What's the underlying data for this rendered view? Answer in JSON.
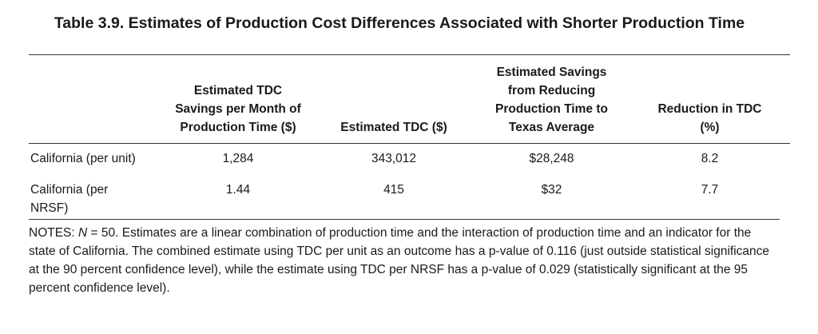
{
  "title": "Table 3.9. Estimates of Production Cost Differences Associated with Shorter Production Time",
  "columns": [
    {
      "lines": []
    },
    {
      "lines": [
        "Estimated TDC",
        "Savings per Month of",
        "Production Time ($)"
      ]
    },
    {
      "lines": [
        "Estimated TDC ($)"
      ]
    },
    {
      "lines": [
        "Estimated Savings",
        "from Reducing",
        "Production Time to",
        "Texas Average"
      ]
    },
    {
      "lines": [
        "Reduction in TDC",
        "(%)"
      ]
    }
  ],
  "rows": [
    {
      "label": [
        "California (per unit)"
      ],
      "savings_per_month": "1,284",
      "tdc": "343,012",
      "savings_texas": "$28,248",
      "reduction": "8.2"
    },
    {
      "label": [
        "California (per",
        "NRSF)"
      ],
      "savings_per_month": "1.44",
      "tdc": "415",
      "savings_texas": "$32",
      "reduction": "7.7"
    }
  ],
  "notes": {
    "prefix": "NOTES: ",
    "n_symbol": "N",
    "text": " = 50. Estimates are a linear combination of production time and the interaction of production time and an indicator for the state of California. The combined estimate using TDC per unit as an outcome has a p-value of 0.116 (just outside statistical significance at the 90 percent confidence level), while the estimate using TDC per NRSF has a p-value of 0.029 (statistically significant at the 95 percent confidence level)."
  }
}
